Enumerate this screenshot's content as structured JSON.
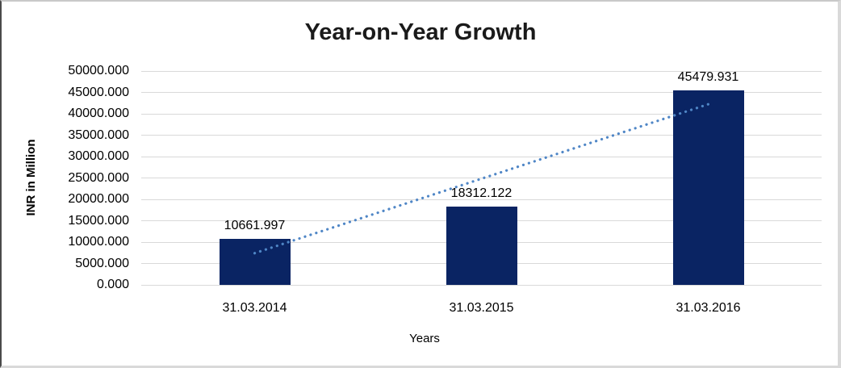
{
  "window": {
    "title": "Year-on-Year Growth chart"
  },
  "chart_data": {
    "type": "bar",
    "title": "Year-on-Year Growth",
    "categories": [
      "31.03.2014",
      "31.03.2015",
      "31.03.2016"
    ],
    "values": [
      10661.997,
      18312.122,
      45479.931
    ],
    "data_labels": [
      "10661.997",
      "18312.122",
      "45479.931"
    ],
    "xlabel": "Years",
    "ylabel": "INR in Million",
    "ylim": [
      0,
      50000
    ],
    "ytick_step": 5000,
    "yticks": [
      "0.000",
      "5000.000",
      "10000.000",
      "15000.000",
      "20000.000",
      "25000.000",
      "30000.000",
      "35000.000",
      "40000.000",
      "45000.000",
      "50000.000"
    ],
    "grid": true,
    "legend": "none",
    "trendline": {
      "type": "linear",
      "style": "dotted",
      "color": "#4f86c6"
    },
    "colors": {
      "bar": "#0a2463",
      "gridline": "#d9d9d9",
      "text": "#000000",
      "title_text": "#1a1a1a",
      "background": "#ffffff"
    }
  }
}
